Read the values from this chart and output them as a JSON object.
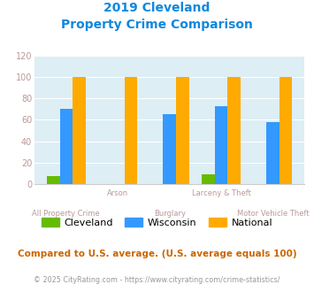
{
  "title_line1": "2019 Cleveland",
  "title_line2": "Property Crime Comparison",
  "categories": [
    "All Property Crime",
    "Arson",
    "Burglary",
    "Larceny & Theft",
    "Motor Vehicle Theft"
  ],
  "cleveland": [
    7,
    0,
    0,
    9,
    0
  ],
  "wisconsin": [
    70,
    0,
    65,
    73,
    58
  ],
  "national": [
    100,
    100,
    100,
    100,
    100
  ],
  "cleveland_color": "#66bb00",
  "wisconsin_color": "#3399ff",
  "national_color": "#ffaa00",
  "ylim": [
    0,
    120
  ],
  "yticks": [
    0,
    20,
    40,
    60,
    80,
    100,
    120
  ],
  "bar_width": 0.25,
  "plot_bg": "#ddeef5",
  "grid_color": "#ffffff",
  "label_color": "#bb9999",
  "tick_color": "#bb9999",
  "title_color": "#1188dd",
  "footer_text": "Compared to U.S. average. (U.S. average equals 100)",
  "footer2_text": "© 2025 CityRating.com - https://www.cityrating.com/crime-statistics/",
  "footer_color": "#cc6600",
  "footer2_color": "#999999",
  "legend_labels": [
    "Cleveland",
    "Wisconsin",
    "National"
  ]
}
